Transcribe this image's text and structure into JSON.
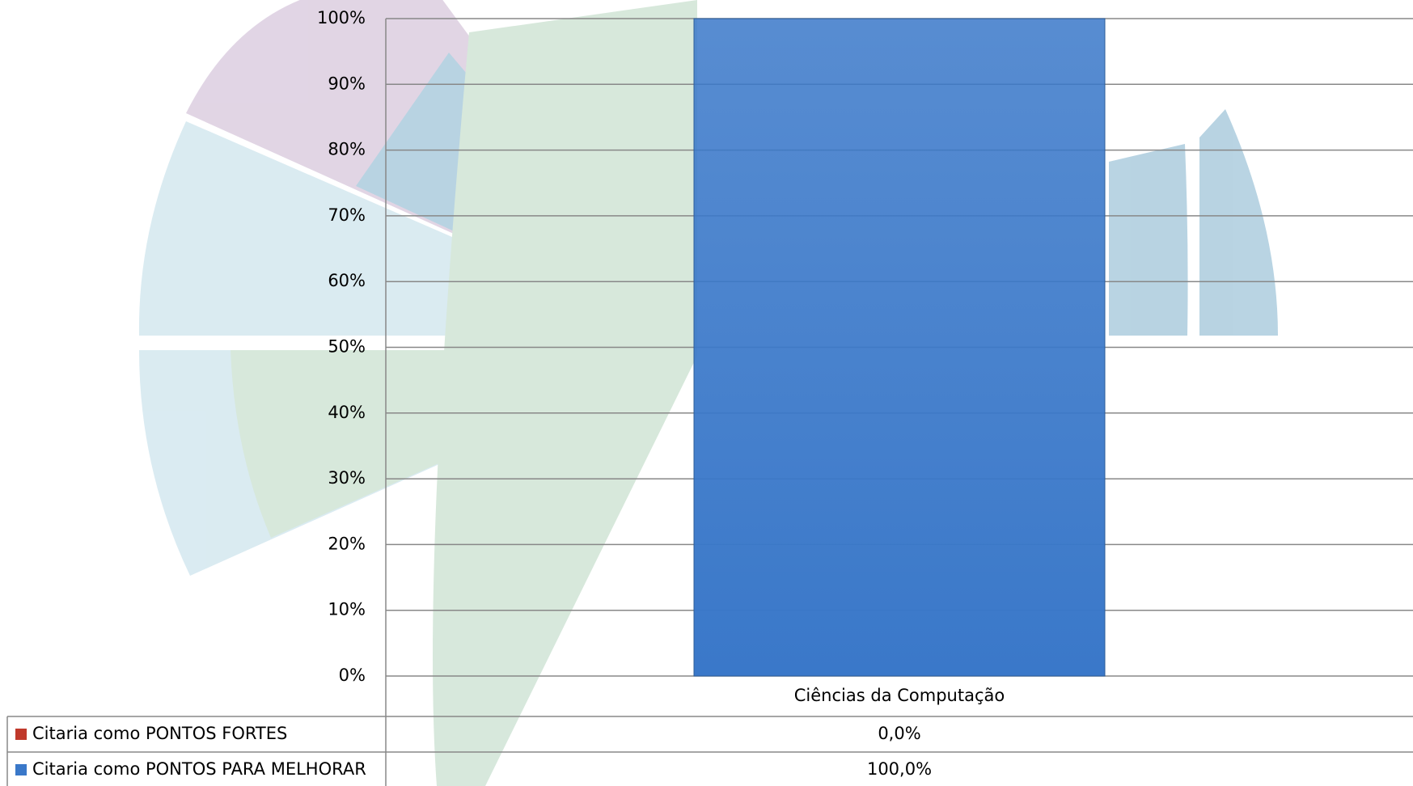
{
  "chart_data": {
    "type": "stacked_bar",
    "categories": [
      "Ciências da Computação"
    ],
    "series": [
      {
        "name": "Citaria como PONTOS FORTES",
        "color": "#c0392b",
        "values": [
          0
        ],
        "value_labels": [
          "0,0%"
        ]
      },
      {
        "name": "Citaria como PONTOS PARA MELHORAR",
        "color": "#3a78c9",
        "values": [
          100
        ],
        "value_labels": [
          "100,0%"
        ]
      }
    ],
    "ylim": [
      0,
      100
    ],
    "yticks": [
      {
        "value": 0,
        "label": "0%"
      },
      {
        "value": 10,
        "label": "10%"
      },
      {
        "value": 20,
        "label": "20%"
      },
      {
        "value": 30,
        "label": "30%"
      },
      {
        "value": 40,
        "label": "40%"
      },
      {
        "value": 50,
        "label": "50%"
      },
      {
        "value": 60,
        "label": "60%"
      },
      {
        "value": 70,
        "label": "70%"
      },
      {
        "value": 80,
        "label": "80%"
      },
      {
        "value": 90,
        "label": "90%"
      },
      {
        "value": 100,
        "label": "100%"
      }
    ],
    "grid": true,
    "legend": "table"
  }
}
